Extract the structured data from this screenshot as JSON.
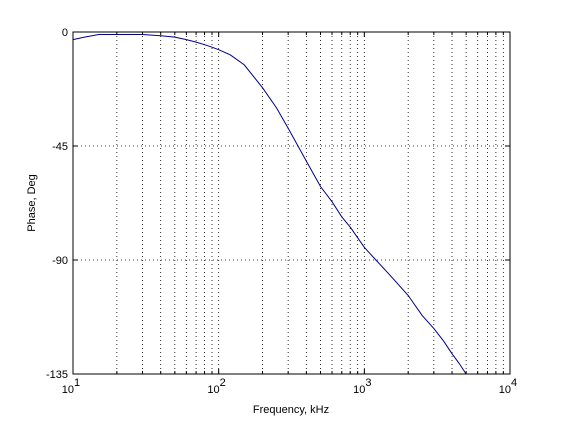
{
  "chart_data": {
    "type": "line",
    "title": "",
    "xlabel": "Frequency, kHz",
    "ylabel": "Phase, Deg",
    "x_scale": "log",
    "xlim": [
      10,
      10000
    ],
    "ylim": [
      -135,
      0
    ],
    "x_ticks": [
      {
        "value": 10,
        "base": "10",
        "exp": "1"
      },
      {
        "value": 100,
        "base": "10",
        "exp": "2"
      },
      {
        "value": 1000,
        "base": "10",
        "exp": "3"
      },
      {
        "value": 10000,
        "base": "10",
        "exp": "4"
      }
    ],
    "y_ticks": [
      {
        "value": 0,
        "label": "0"
      },
      {
        "value": -45,
        "label": "-45"
      },
      {
        "value": -90,
        "label": "-90"
      },
      {
        "value": -135,
        "label": "-135"
      }
    ],
    "grid": "dotted",
    "line_color": "#00008b",
    "series": [
      {
        "x": [
          10,
          12,
          15,
          20,
          25,
          30,
          40,
          50,
          60,
          70,
          80,
          90,
          100,
          120,
          150,
          200,
          250,
          300,
          400,
          500,
          600,
          700,
          800,
          1000,
          1200,
          1500,
          2000,
          2500,
          3000,
          3500,
          4000,
          4500,
          5000
        ],
        "y": [
          -3,
          -2,
          -1,
          -1,
          -1,
          -1,
          -1.5,
          -2,
          -3,
          -4,
          -5,
          -6,
          -7,
          -9,
          -13,
          -22,
          -30,
          -38,
          -51,
          -61,
          -67,
          -73,
          -77,
          -85,
          -90,
          -96,
          -104,
          -112,
          -117,
          -122,
          -127,
          -131,
          -135
        ]
      }
    ]
  }
}
